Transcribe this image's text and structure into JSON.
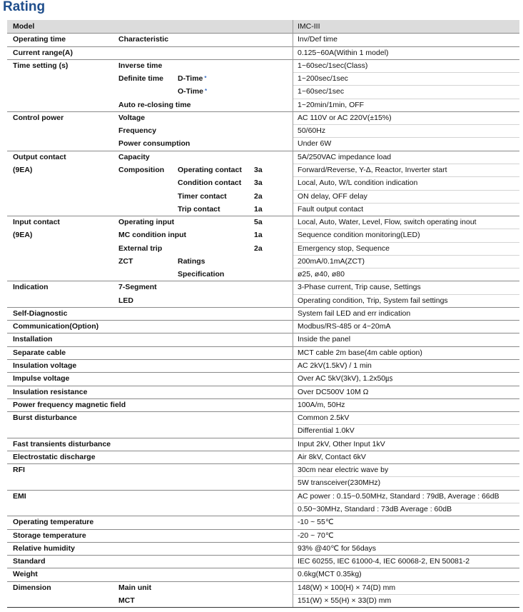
{
  "title": "Rating",
  "table": {
    "groups": [
      {
        "lines": [
          {
            "c1": "Model",
            "v": "IMC-III"
          }
        ]
      },
      {
        "lines": [
          {
            "c1": "Operating time",
            "c2": "Characteristic",
            "v": "Inv/Def time"
          }
        ]
      },
      {
        "lines": [
          {
            "c1": "Current range(A)",
            "v": "0.125~60A(Within 1 model)"
          }
        ]
      },
      {
        "lines": [
          {
            "c1": "Time setting (s)",
            "c2": "Inverse time",
            "v": "1~60sec/1sec(Class)"
          },
          {
            "c2": "Definite time",
            "c3": "D-Time",
            "note": "*",
            "v": "1~200sec/1sec"
          },
          {
            "c3": "O-Time",
            "note": "*",
            "v": "1~60sec/1sec"
          },
          {
            "c2": "Auto re-closing time",
            "v": "1~20min/1min, OFF"
          }
        ]
      },
      {
        "lines": [
          {
            "c1": "Control power",
            "c2": "Voltage",
            "v": "AC 110V or AC 220V(±15%)"
          },
          {
            "c2": "Frequency",
            "v": "50/60Hz"
          },
          {
            "c2": "Power consumption",
            "v": "Under 6W"
          }
        ]
      },
      {
        "lines": [
          {
            "c1": "Output contact",
            "c2": "Capacity",
            "v": "5A/250VAC impedance load"
          },
          {
            "c1": "(9EA)",
            "c2": "Composition",
            "c3": "Operating contact",
            "c4": "3a",
            "v": "Forward/Reverse, Y-Δ, Reactor, Inverter start"
          },
          {
            "c3": "Condition contact",
            "c4": "3a",
            "v": "Local, Auto, W/L condition indication"
          },
          {
            "c3": "Timer  contact",
            "c4": "2a",
            "v": "ON delay, OFF delay"
          },
          {
            "c3": "Trip  contact",
            "c4": "1a",
            "v": "Fault output contact"
          }
        ]
      },
      {
        "lines": [
          {
            "c1": "Input contact",
            "c2": "Operating input",
            "c4": "5a",
            "v": "Local, Auto, Water, Level, Flow, switch operating inout"
          },
          {
            "c1": "(9EA)",
            "c2": "MC condition input",
            "c4": "1a",
            "v": "Sequence condition monitoring(LED)"
          },
          {
            "c2": "External trip",
            "c4": "2a",
            "v": "Emergency stop, Sequence"
          },
          {
            "c2": "ZCT",
            "c3": "Ratings",
            "v": "200mA/0.1mA(ZCT)"
          },
          {
            "c3": "Specification",
            "v": "ø25, ø40, ø80"
          }
        ]
      },
      {
        "lines": [
          {
            "c1": "Indication",
            "c2": "7-Segment",
            "v": "3-Phase current, Trip cause, Settings"
          },
          {
            "c2": "LED",
            "v": "Operating condition, Trip, System fail settings"
          }
        ]
      },
      {
        "lines": [
          {
            "c1": "Self-Diagnostic",
            "v": "System fail LED and err indication"
          }
        ]
      },
      {
        "lines": [
          {
            "c1": "Communication(Option)",
            "v": "Modbus/RS-485 or 4~20mA"
          }
        ]
      },
      {
        "lines": [
          {
            "c1": "Installation",
            "v": "Inside the panel"
          }
        ]
      },
      {
        "lines": [
          {
            "c1": "Separate cable",
            "v": "MCT cable 2m base(4m cable option)"
          }
        ]
      },
      {
        "lines": [
          {
            "c1": "Insulation voltage",
            "v": "AC 2kV(1.5kV) / 1 min"
          }
        ]
      },
      {
        "lines": [
          {
            "c1": "Impulse voltage",
            "v": "Over AC 5kV(3kV), 1.2x50㎲"
          }
        ]
      },
      {
        "lines": [
          {
            "c1": "Insulation resistance",
            "v": "Over DC500V 10M Ω"
          }
        ]
      },
      {
        "lines": [
          {
            "c1": "Power frequency magnetic field",
            "v": "100A/m, 50Hz"
          }
        ]
      },
      {
        "lines": [
          {
            "c1": "Burst disturbance",
            "v": "Common 2.5kV"
          },
          {
            "v": "Differential 1.0kV"
          }
        ]
      },
      {
        "lines": [
          {
            "c1": "Fast transients disturbance",
            "v": "Input 2kV, Other Input 1kV"
          }
        ]
      },
      {
        "lines": [
          {
            "c1": "Electrostatic discharge",
            "v": "Air 8kV, Contact 6kV"
          }
        ]
      },
      {
        "lines": [
          {
            "c1": "RFI",
            "v": "30cm near electric wave by"
          },
          {
            "v": "5W transceiver(230MHz)"
          }
        ]
      },
      {
        "lines": [
          {
            "c1": "EMI",
            "v": "AC power : 0.15~0.50MHz, Standard : 79dB, Average : 66dB"
          },
          {
            "v": "0.50~30MHz, Standard : 73dB Average : 60dB"
          }
        ]
      },
      {
        "lines": [
          {
            "c1": "Operating temperature",
            "v": "-10 ~ 55℃"
          }
        ]
      },
      {
        "lines": [
          {
            "c1": "Storage temperature",
            "v": "-20 ~ 70℃"
          }
        ]
      },
      {
        "lines": [
          {
            "c1": "Relative humidity",
            "v": "93% @40℃ for 56days"
          }
        ]
      },
      {
        "lines": [
          {
            "c1": "Standard",
            "v": "IEC 60255, IEC 61000-4, IEC 60068-2, EN 50081-2"
          }
        ]
      },
      {
        "lines": [
          {
            "c1": "Weight",
            "v": "0.6kg(MCT 0.35kg)"
          }
        ]
      },
      {
        "lines": [
          {
            "c1": "Dimension",
            "c2": "Main unit",
            "v": "148(W) × 100(H) × 74(D) mm"
          },
          {
            "c2": "MCT",
            "v": "151(W) × 55(H) × 33(D) mm"
          }
        ]
      }
    ]
  }
}
